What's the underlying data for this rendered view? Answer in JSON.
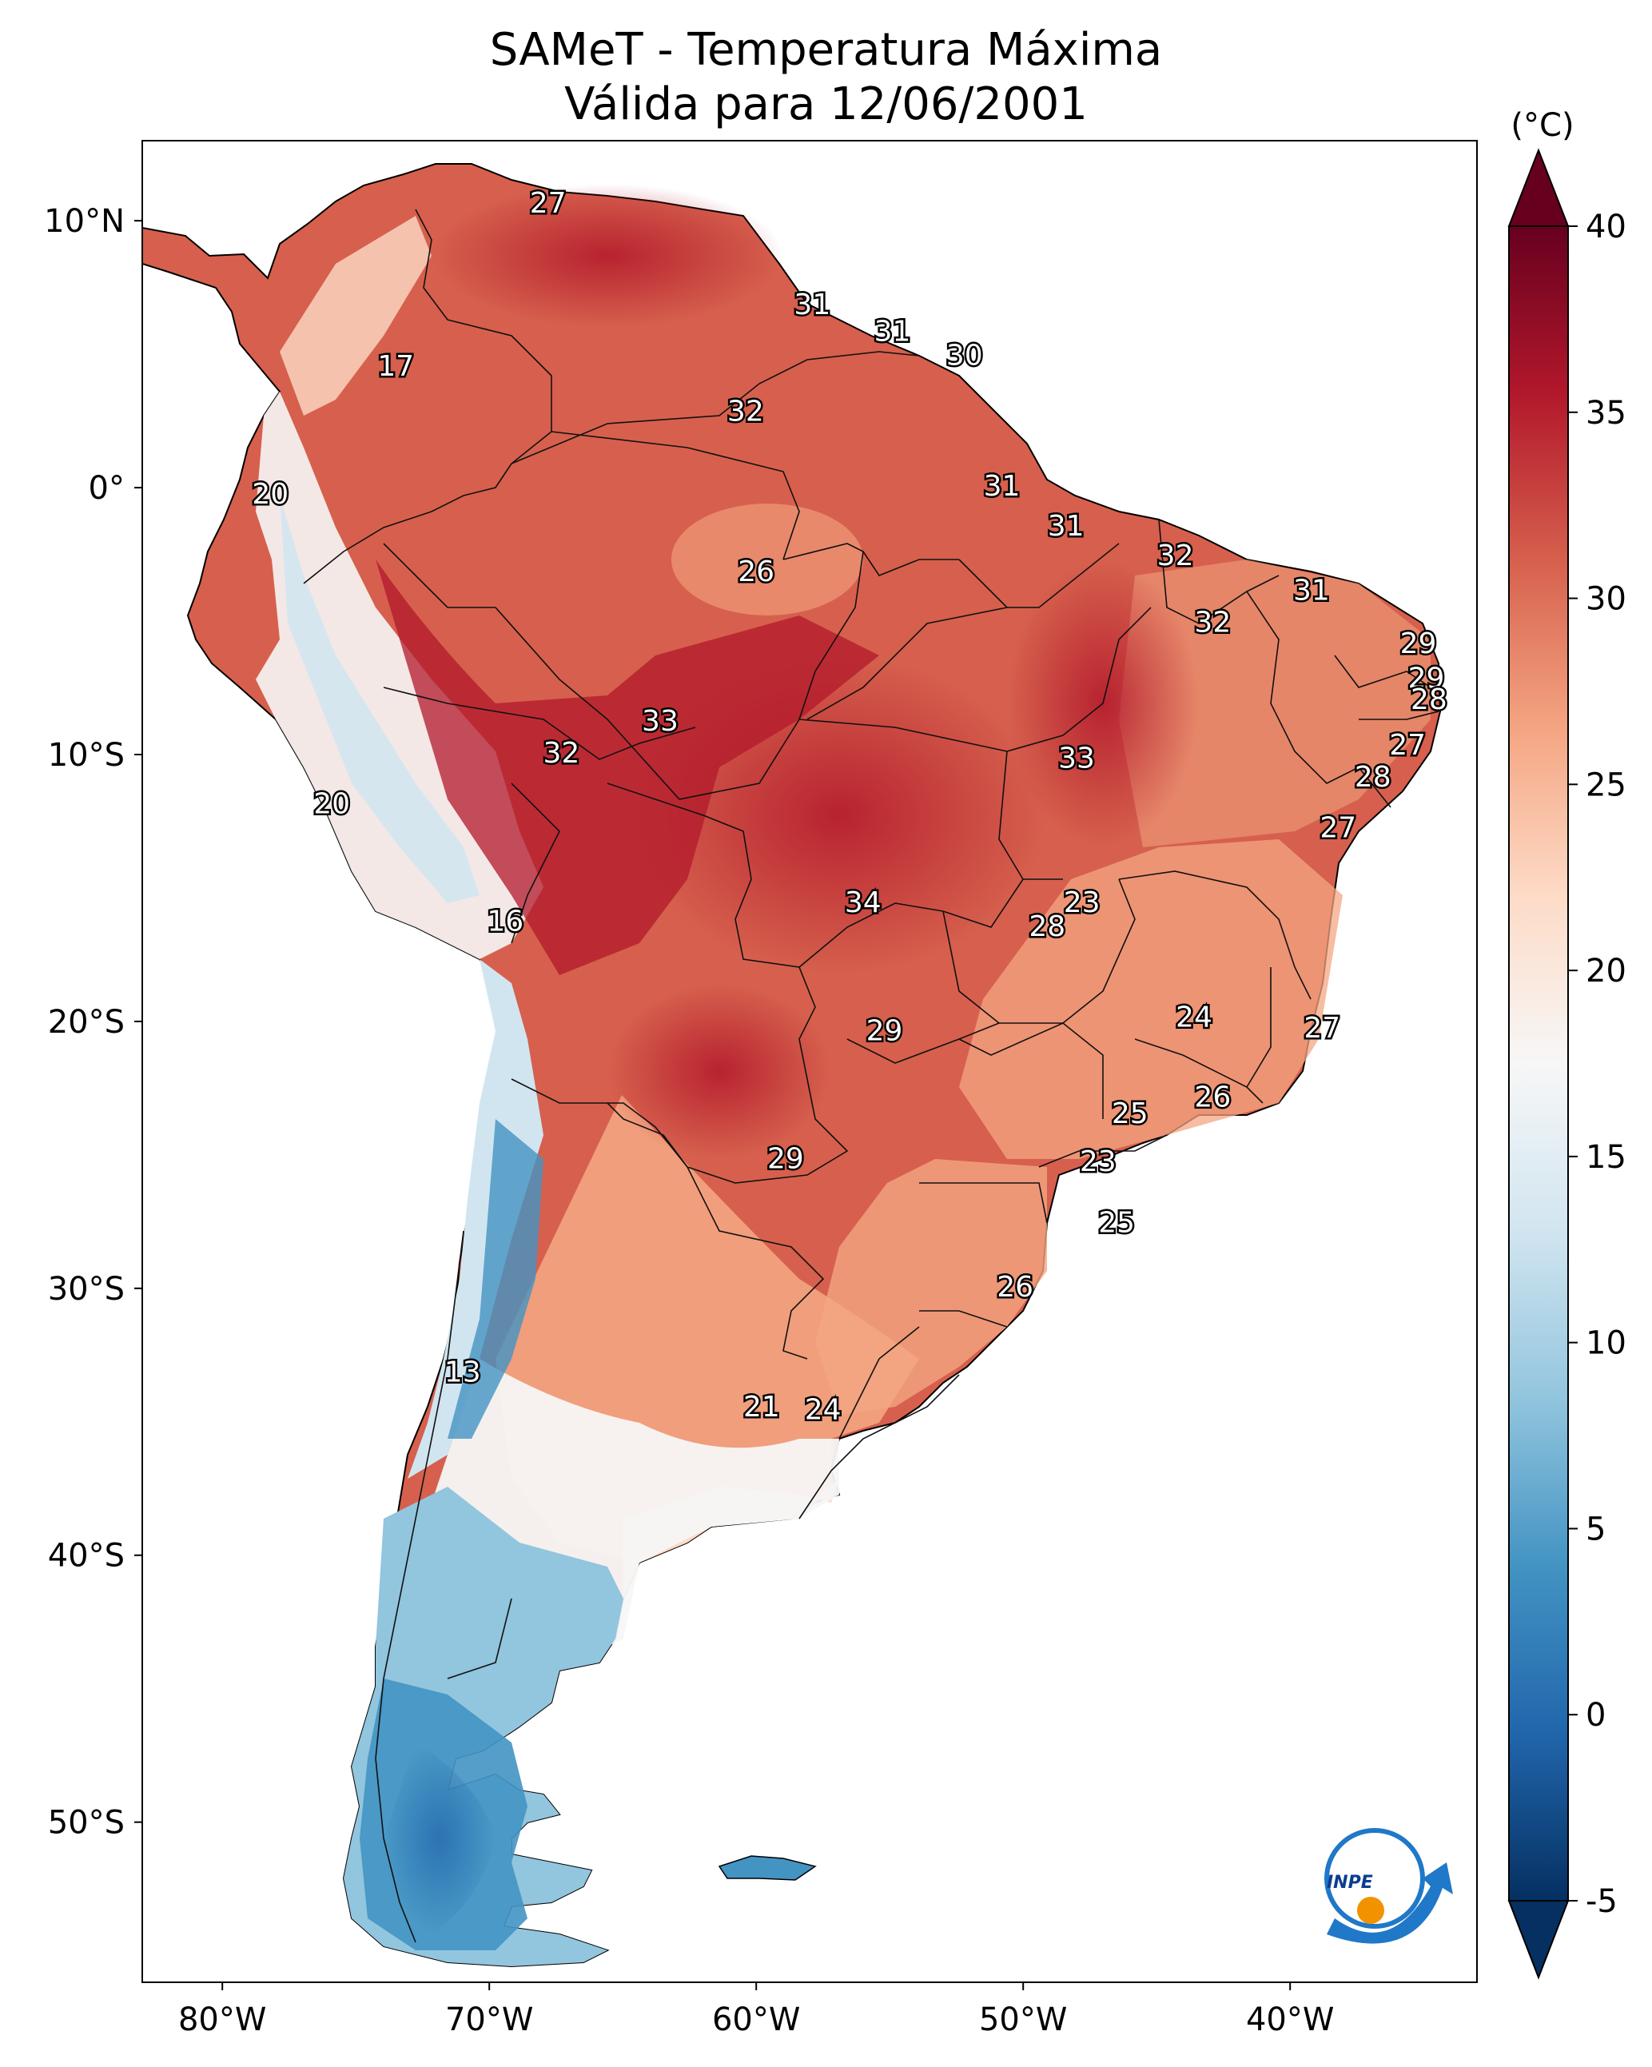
{
  "title": {
    "line1": "SAMeT - Temperatura Máxima",
    "line2": "Válida para 12/06/2001"
  },
  "map": {
    "lon_range": [
      -83,
      -33
    ],
    "lat_range": [
      -56,
      13
    ],
    "lat_ticks": [
      {
        "value": 10,
        "label": "10°N"
      },
      {
        "value": 0,
        "label": "0°"
      },
      {
        "value": -10,
        "label": "10°S"
      },
      {
        "value": -20,
        "label": "20°S"
      },
      {
        "value": -30,
        "label": "30°S"
      },
      {
        "value": -40,
        "label": "40°S"
      },
      {
        "value": -50,
        "label": "50°S"
      }
    ],
    "lon_ticks": [
      {
        "value": -80,
        "label": "80°W"
      },
      {
        "value": -70,
        "label": "70°W"
      },
      {
        "value": -60,
        "label": "60°W"
      },
      {
        "value": -50,
        "label": "50°W"
      },
      {
        "value": -40,
        "label": "40°W"
      }
    ],
    "labels": [
      {
        "lon": -67.8,
        "lat": 10.6,
        "value": "27"
      },
      {
        "lon": -57.9,
        "lat": 6.8,
        "value": "31"
      },
      {
        "lon": -54.9,
        "lat": 5.8,
        "value": "31"
      },
      {
        "lon": -52.2,
        "lat": 4.9,
        "value": "30"
      },
      {
        "lon": -73.5,
        "lat": 4.5,
        "value": "17"
      },
      {
        "lon": -60.4,
        "lat": 2.8,
        "value": "32"
      },
      {
        "lon": -78.2,
        "lat": -0.3,
        "value": "20"
      },
      {
        "lon": -50.8,
        "lat": 0.0,
        "value": "31"
      },
      {
        "lon": -48.4,
        "lat": -1.5,
        "value": "31"
      },
      {
        "lon": -44.3,
        "lat": -2.6,
        "value": "32"
      },
      {
        "lon": -60.0,
        "lat": -3.2,
        "value": "26"
      },
      {
        "lon": -39.2,
        "lat": -3.9,
        "value": "31"
      },
      {
        "lon": -42.9,
        "lat": -5.1,
        "value": "32"
      },
      {
        "lon": -35.2,
        "lat": -5.9,
        "value": "29"
      },
      {
        "lon": -34.9,
        "lat": -7.2,
        "value": "29"
      },
      {
        "lon": -34.8,
        "lat": -8.0,
        "value": "28"
      },
      {
        "lon": -63.6,
        "lat": -8.8,
        "value": "33"
      },
      {
        "lon": -35.6,
        "lat": -9.7,
        "value": "27"
      },
      {
        "lon": -67.3,
        "lat": -10.0,
        "value": "32"
      },
      {
        "lon": -48.0,
        "lat": -10.2,
        "value": "33"
      },
      {
        "lon": -36.9,
        "lat": -10.9,
        "value": "28"
      },
      {
        "lon": -75.9,
        "lat": -11.9,
        "value": "20"
      },
      {
        "lon": -38.2,
        "lat": -12.8,
        "value": "27"
      },
      {
        "lon": -56.0,
        "lat": -15.6,
        "value": "34"
      },
      {
        "lon": -47.8,
        "lat": -15.6,
        "value": "23"
      },
      {
        "lon": -49.1,
        "lat": -16.5,
        "value": "28"
      },
      {
        "lon": -69.4,
        "lat": -16.3,
        "value": "16"
      },
      {
        "lon": -43.6,
        "lat": -19.9,
        "value": "24"
      },
      {
        "lon": -38.8,
        "lat": -20.3,
        "value": "27"
      },
      {
        "lon": -55.2,
        "lat": -20.4,
        "value": "29"
      },
      {
        "lon": -42.9,
        "lat": -22.9,
        "value": "26"
      },
      {
        "lon": -46.0,
        "lat": -23.5,
        "value": "25"
      },
      {
        "lon": -58.9,
        "lat": -25.2,
        "value": "29"
      },
      {
        "lon": -47.2,
        "lat": -25.3,
        "value": "23"
      },
      {
        "lon": -46.5,
        "lat": -27.6,
        "value": "25"
      },
      {
        "lon": -50.3,
        "lat": -30.0,
        "value": "26"
      },
      {
        "lon": -71.0,
        "lat": -33.2,
        "value": "13"
      },
      {
        "lon": -59.8,
        "lat": -34.5,
        "value": "21"
      },
      {
        "lon": -57.5,
        "lat": -34.6,
        "value": "24"
      }
    ],
    "logo_text": "INPE"
  },
  "colorbar": {
    "unit": "(°C)",
    "min": -5,
    "max": 40,
    "ticks": [
      "40",
      "35",
      "30",
      "25",
      "20",
      "15",
      "10",
      "5",
      "0",
      "-5"
    ],
    "colors": [
      "#053061",
      "#2166ac",
      "#4393c3",
      "#92c5de",
      "#d1e5f0",
      "#f7f7f7",
      "#fddbc7",
      "#f4a582",
      "#d6604d",
      "#b2182b",
      "#67001f"
    ]
  }
}
